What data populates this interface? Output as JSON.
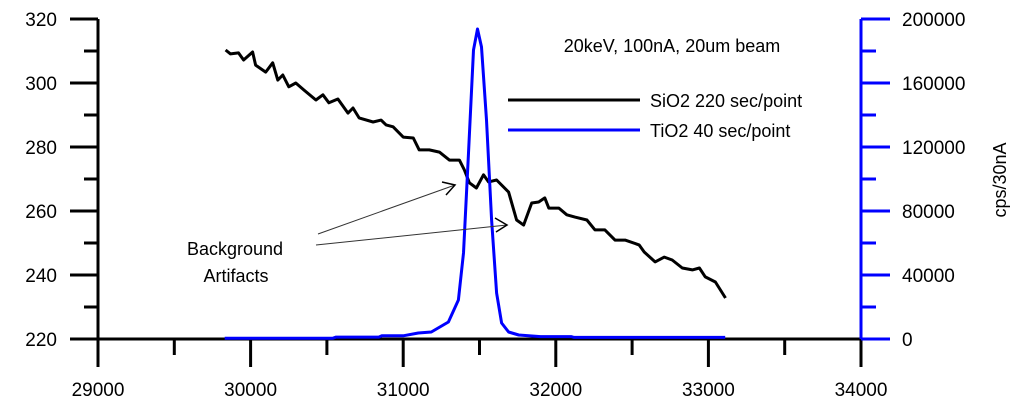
{
  "chart_data": {
    "type": "line",
    "title": "20keV, 100nA, 20um beam",
    "xlabel": "",
    "ylabel_left": "",
    "ylabel_right": "cps/30nA",
    "xlim": [
      29000,
      34000
    ],
    "ylim_left": [
      220,
      320
    ],
    "ylim_right": [
      0,
      200000
    ],
    "x_ticks": [
      "29000",
      "30000",
      "31000",
      "32000",
      "33000",
      "34000"
    ],
    "y_left_ticks": [
      "220",
      "240",
      "260",
      "280",
      "300",
      "320"
    ],
    "y_right_ticks": [
      "0",
      "40000",
      "80000",
      "120000",
      "160000",
      "200000"
    ],
    "grid": false,
    "legend_placement": "top-right",
    "colors": {
      "sio2": "#000000",
      "tio2": "#0000ff",
      "right_axis": "#0000ff"
    },
    "annotations": {
      "line1": "Background",
      "line2": "Artifacts"
    },
    "series": [
      {
        "name": "SiO2 220 sec/point",
        "axis": "left",
        "color": "#000000",
        "x": [
          29836,
          29868,
          29921,
          29954,
          30013,
          30033,
          30099,
          30145,
          30178,
          30211,
          30250,
          30296,
          30349,
          30428,
          30474,
          30513,
          30572,
          30638,
          30671,
          30711,
          30803,
          30855,
          30888,
          30934,
          31000,
          31066,
          31105,
          31171,
          31237,
          31303,
          31368,
          31401,
          31434,
          31480,
          31526,
          31559,
          31612,
          31691,
          31743,
          31789,
          31842,
          31888,
          31928,
          31954,
          32020,
          32072,
          32125,
          32204,
          32257,
          32322,
          32388,
          32454,
          32546,
          32579,
          32651,
          32711,
          32763,
          32829,
          32895,
          32941,
          32980,
          33046,
          33112
        ],
        "y": [
          310.3,
          309.1,
          309.4,
          307.2,
          309.7,
          305.6,
          303.4,
          306.3,
          300.9,
          302.5,
          298.8,
          300.0,
          297.8,
          294.7,
          296.3,
          293.8,
          295.0,
          290.6,
          292.2,
          289.1,
          287.8,
          288.4,
          286.9,
          286.3,
          283.1,
          282.8,
          279.1,
          279.1,
          278.4,
          275.9,
          275.9,
          272.8,
          268.8,
          267.2,
          271.3,
          269.1,
          269.7,
          265.9,
          257.2,
          255.6,
          262.5,
          262.8,
          264.1,
          260.9,
          260.9,
          258.8,
          258.1,
          257.2,
          254.1,
          254.1,
          250.9,
          250.9,
          249.4,
          247.2,
          244.1,
          245.6,
          244.7,
          242.2,
          241.6,
          242.2,
          239.4,
          237.8,
          232.8
        ]
      },
      {
        "name": "TiO2 40 sec/point",
        "axis": "right",
        "color": "#0000ff",
        "x": [
          29830,
          30540,
          30560,
          30840,
          30860,
          31000,
          31099,
          31184,
          31296,
          31362,
          31395,
          31428,
          31461,
          31487,
          31513,
          31546,
          31579,
          31612,
          31645,
          31691,
          31757,
          31900,
          32100,
          32120,
          33110
        ],
        "y": [
          500,
          500,
          1200,
          1200,
          2000,
          2000,
          3750,
          4375,
          10625,
          24375,
          53750,
          116250,
          180625,
          193750,
          182500,
          136875,
          74375,
          28750,
          10000,
          4375,
          2500,
          1500,
          1500,
          1000,
          1000
        ]
      }
    ]
  }
}
